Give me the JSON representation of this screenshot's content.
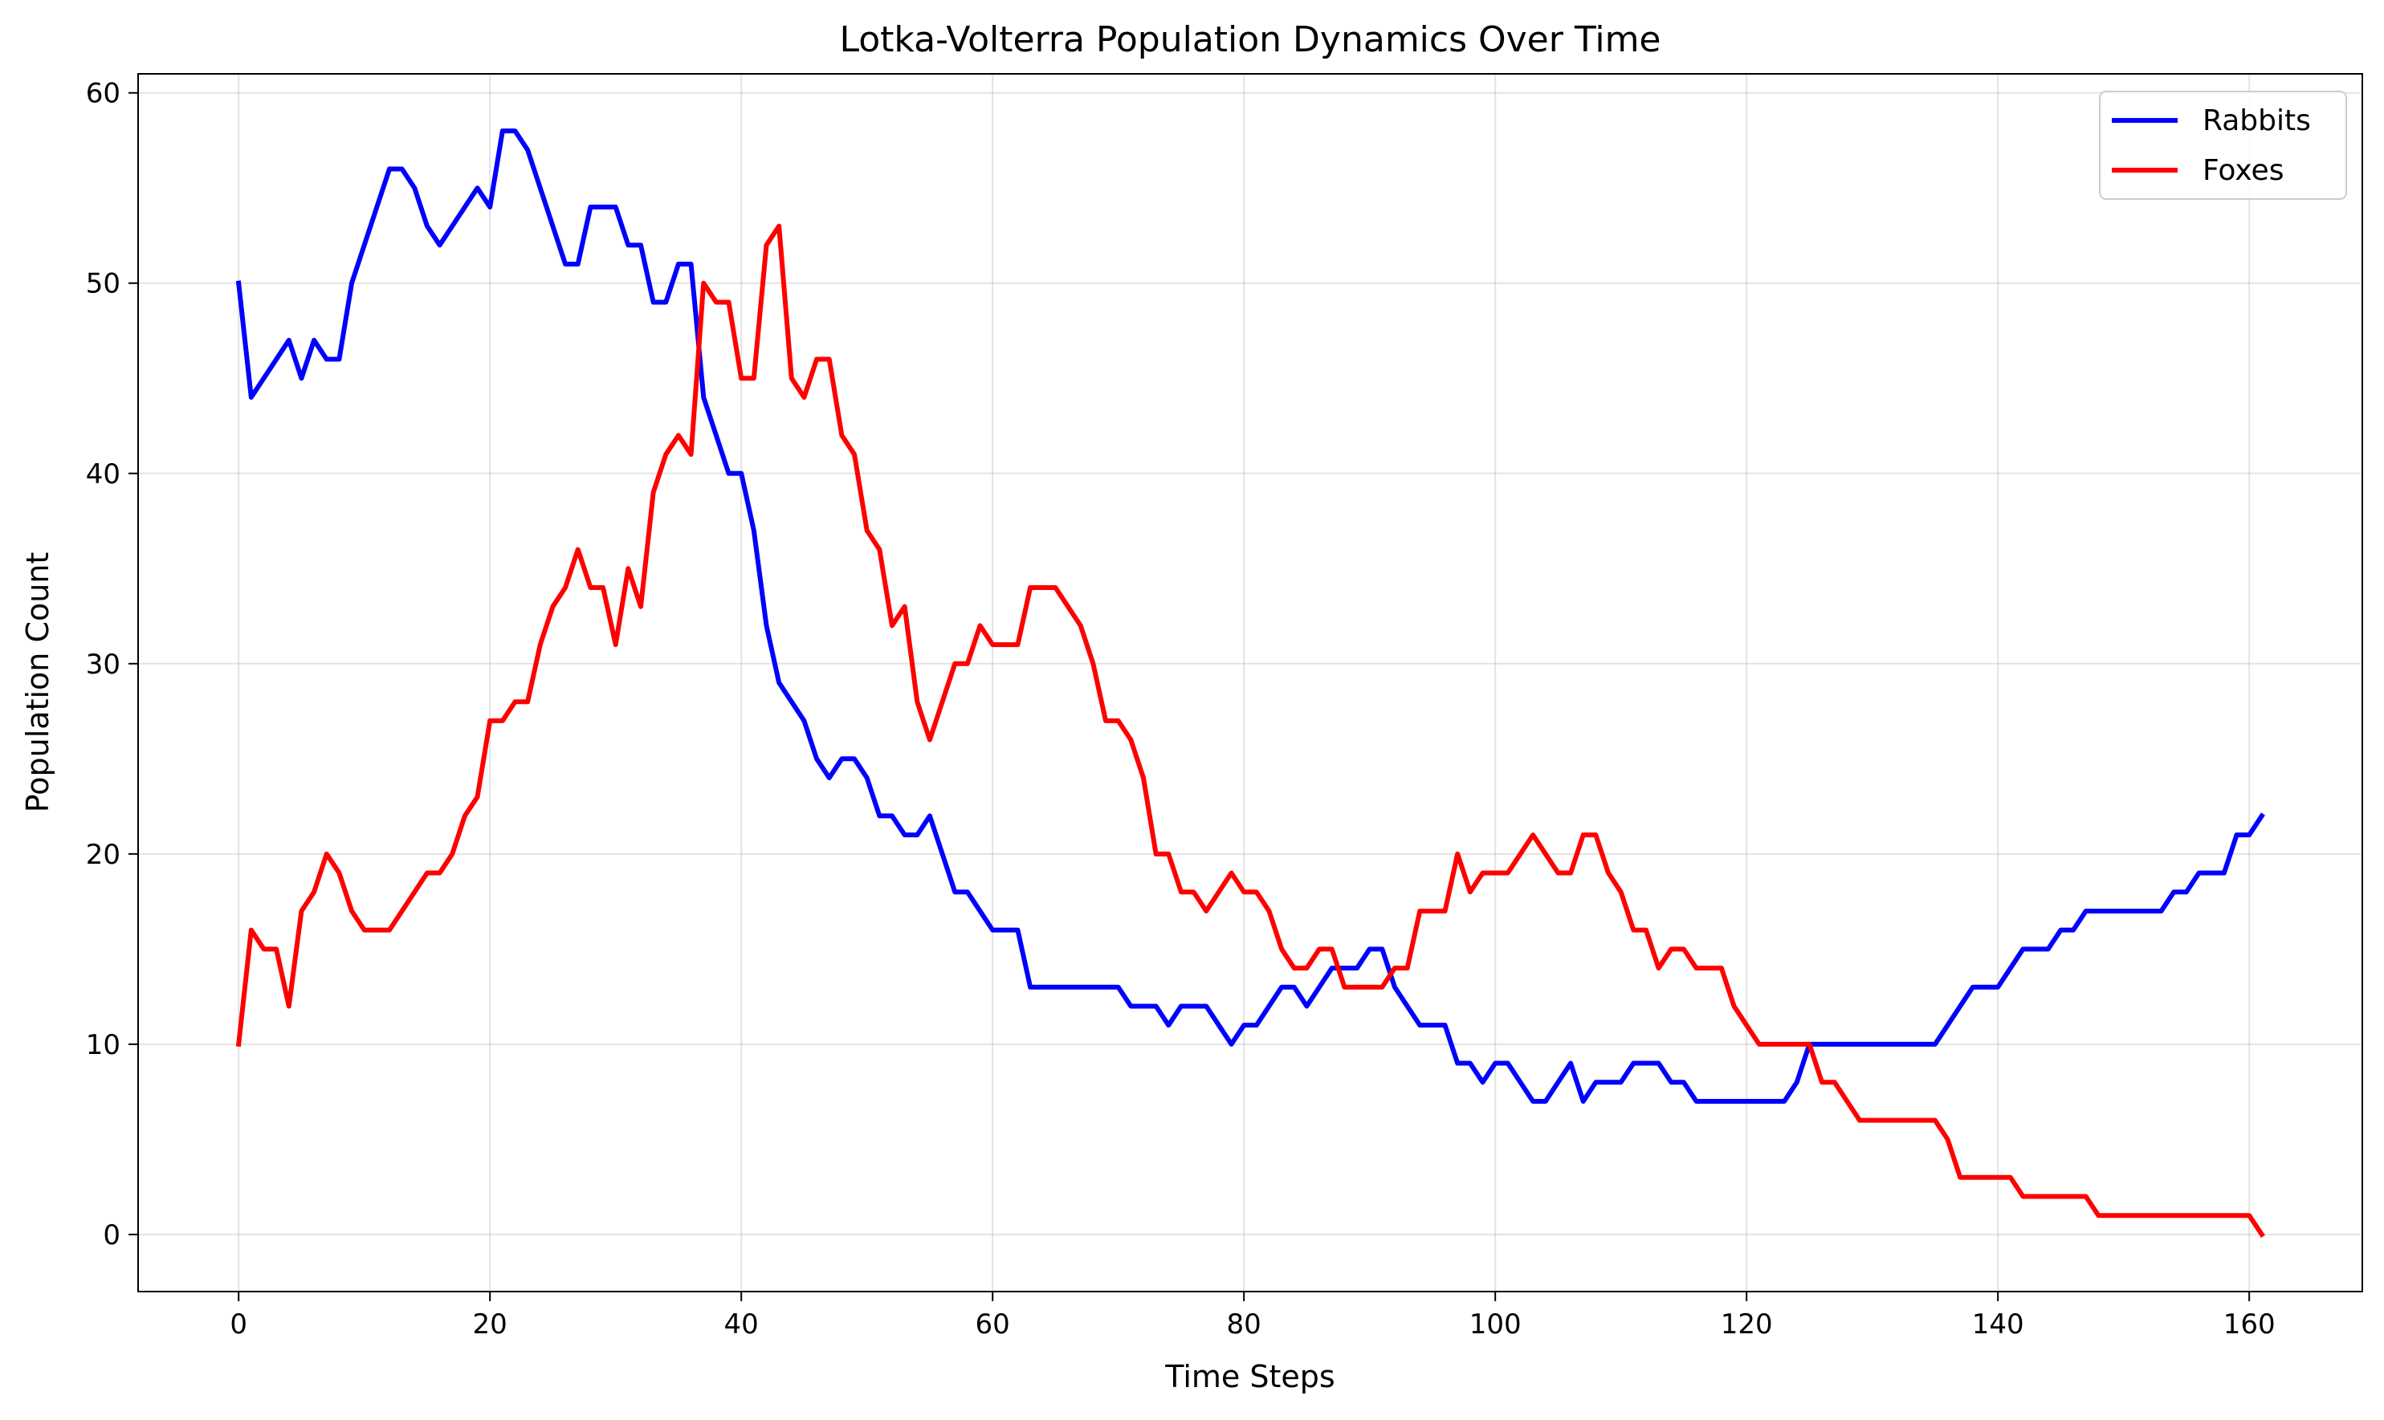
{
  "chart_data": {
    "type": "line",
    "title": "Lotka-Volterra Population Dynamics Over Time",
    "xlabel": "Time Steps",
    "ylabel": "Population Count",
    "xlim": [
      -8,
      169
    ],
    "ylim": [
      -3,
      61
    ],
    "xticks": [
      0,
      20,
      40,
      60,
      80,
      100,
      120,
      140,
      160
    ],
    "yticks": [
      0,
      10,
      20,
      30,
      40,
      50,
      60
    ],
    "grid": true,
    "legend_position": "top-right",
    "x": [
      0,
      1,
      2,
      3,
      4,
      5,
      6,
      7,
      8,
      9,
      10,
      11,
      12,
      13,
      14,
      15,
      16,
      17,
      18,
      19,
      20,
      21,
      22,
      23,
      24,
      25,
      26,
      27,
      28,
      29,
      30,
      31,
      32,
      33,
      34,
      35,
      36,
      37,
      38,
      39,
      40,
      41,
      42,
      43,
      44,
      45,
      46,
      47,
      48,
      49,
      50,
      51,
      52,
      53,
      54,
      55,
      56,
      57,
      58,
      59,
      60,
      61,
      62,
      63,
      64,
      65,
      66,
      67,
      68,
      69,
      70,
      71,
      72,
      73,
      74,
      75,
      76,
      77,
      78,
      79,
      80,
      81,
      82,
      83,
      84,
      85,
      86,
      87,
      88,
      89,
      90,
      91,
      92,
      93,
      94,
      95,
      96,
      97,
      98,
      99,
      100,
      101,
      102,
      103,
      104,
      105,
      106,
      107,
      108,
      109,
      110,
      111,
      112,
      113,
      114,
      115,
      116,
      117,
      118,
      119,
      120,
      121,
      122,
      123,
      124,
      125,
      126,
      127,
      128,
      129,
      130,
      131,
      132,
      133,
      134,
      135,
      136,
      137,
      138,
      139,
      140,
      141,
      142,
      143,
      144,
      145,
      146,
      147,
      148,
      149,
      150,
      151,
      152,
      153,
      154,
      155,
      156,
      157,
      158,
      159,
      160,
      161
    ],
    "series": [
      {
        "name": "Rabbits",
        "color": "#0000ff",
        "values": [
          50,
          44,
          45,
          46,
          47,
          45,
          47,
          46,
          46,
          50,
          52,
          54,
          56,
          56,
          55,
          53,
          52,
          53,
          54,
          55,
          54,
          58,
          58,
          57,
          55,
          53,
          51,
          51,
          54,
          54,
          54,
          52,
          52,
          49,
          49,
          51,
          51,
          44,
          42,
          40,
          40,
          37,
          32,
          29,
          28,
          27,
          25,
          24,
          25,
          25,
          24,
          22,
          22,
          21,
          21,
          22,
          20,
          18,
          18,
          17,
          16,
          16,
          16,
          13,
          13,
          13,
          13,
          13,
          13,
          13,
          13,
          12,
          12,
          12,
          11,
          12,
          12,
          12,
          11,
          10,
          11,
          11,
          12,
          13,
          13,
          12,
          13,
          14,
          14,
          14,
          15,
          15,
          13,
          12,
          11,
          11,
          11,
          9,
          9,
          8,
          9,
          9,
          8,
          7,
          7,
          8,
          9,
          7,
          8,
          8,
          8,
          9,
          9,
          9,
          8,
          8,
          7,
          7,
          7,
          7,
          7,
          7,
          7,
          7,
          8,
          10,
          10,
          10,
          10,
          10,
          10,
          10,
          10,
          10,
          10,
          10,
          11,
          12,
          13,
          13,
          13,
          14,
          15,
          15,
          15,
          16,
          16,
          17,
          17,
          17,
          17,
          17,
          17,
          17,
          18,
          18,
          19,
          19,
          19,
          21,
          21,
          22
        ]
      },
      {
        "name": "Foxes",
        "color": "#ff0000",
        "values": [
          10,
          16,
          15,
          15,
          12,
          17,
          18,
          20,
          19,
          17,
          16,
          16,
          16,
          17,
          18,
          19,
          19,
          20,
          22,
          23,
          27,
          27,
          28,
          28,
          31,
          33,
          34,
          36,
          34,
          34,
          31,
          35,
          33,
          39,
          41,
          42,
          41,
          50,
          49,
          49,
          45,
          45,
          52,
          53,
          45,
          44,
          46,
          46,
          42,
          41,
          37,
          36,
          32,
          33,
          28,
          26,
          28,
          30,
          30,
          32,
          31,
          31,
          31,
          34,
          34,
          34,
          33,
          32,
          30,
          27,
          27,
          26,
          24,
          20,
          20,
          18,
          18,
          17,
          18,
          19,
          18,
          18,
          17,
          15,
          14,
          14,
          15,
          15,
          13,
          13,
          13,
          13,
          14,
          14,
          17,
          17,
          17,
          20,
          18,
          19,
          19,
          19,
          20,
          21,
          20,
          19,
          19,
          21,
          21,
          19,
          18,
          16,
          16,
          14,
          15,
          15,
          14,
          14,
          14,
          12,
          11,
          10,
          10,
          10,
          10,
          10,
          8,
          8,
          7,
          6,
          6,
          6,
          6,
          6,
          6,
          6,
          5,
          3,
          3,
          3,
          3,
          3,
          2,
          2,
          2,
          2,
          2,
          2,
          1,
          1,
          1,
          1,
          1,
          1,
          1,
          1,
          1,
          1,
          1,
          1,
          1,
          0
        ]
      }
    ]
  }
}
